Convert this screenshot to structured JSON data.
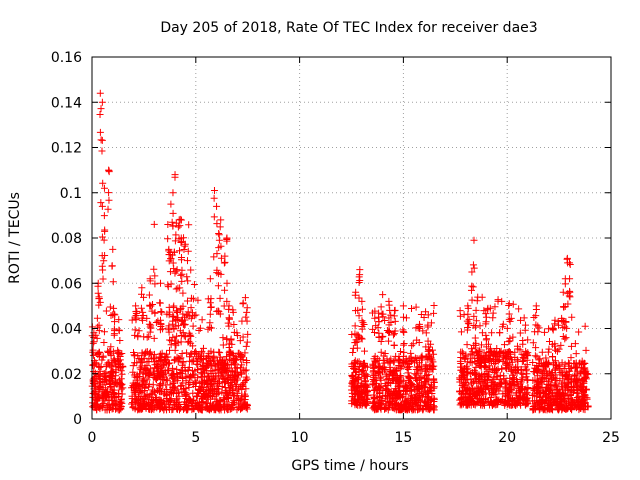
{
  "chart_data": {
    "type": "scatter",
    "title": "Day 205 of 2018, Rate Of TEC Index for receiver dae3",
    "xlabel": "GPS time / hours",
    "ylabel": "ROTI / TECUs",
    "xlim": [
      0,
      25
    ],
    "ylim": [
      0,
      0.16
    ],
    "grid": true,
    "x_ticks": [
      "0",
      "5",
      "10",
      "15",
      "20",
      "25"
    ],
    "y_ticks": [
      "0",
      "0.02",
      "0.04",
      "0.06",
      "0.08",
      "0.1",
      "0.12",
      "0.14",
      "0.16"
    ],
    "marker": "+",
    "color": "#ff0000",
    "clusters": [
      {
        "x_range": [
          0.0,
          1.5
        ],
        "y_range": [
          0.004,
          0.03
        ],
        "peaks": [
          [
            0.4,
            0.144
          ],
          [
            0.5,
            0.14
          ],
          [
            0.8,
            0.11
          ],
          [
            0.6,
            0.102
          ],
          [
            0.5,
            0.094
          ],
          [
            1.0,
            0.075
          ],
          [
            1.1,
            0.046
          ],
          [
            0.3,
            0.06
          ]
        ]
      },
      {
        "x_range": [
          1.9,
          3.6
        ],
        "y_range": [
          0.004,
          0.03
        ],
        "peaks": [
          [
            3.0,
            0.086
          ],
          [
            2.4,
            0.058
          ],
          [
            2.8,
            0.062
          ],
          [
            3.3,
            0.06
          ],
          [
            2.1,
            0.05
          ]
        ]
      },
      {
        "x_range": [
          3.6,
          5.0
        ],
        "y_range": [
          0.004,
          0.05
        ],
        "peaks": [
          [
            4.0,
            0.108
          ],
          [
            3.9,
            0.1
          ],
          [
            3.8,
            0.095
          ],
          [
            4.2,
            0.088
          ],
          [
            4.3,
            0.08
          ],
          [
            3.7,
            0.075
          ],
          [
            4.6,
            0.07
          ],
          [
            4.1,
            0.066
          ]
        ]
      },
      {
        "x_range": [
          5.0,
          7.5
        ],
        "y_range": [
          0.004,
          0.03
        ],
        "peaks": [
          [
            5.9,
            0.101
          ],
          [
            6.0,
            0.094
          ],
          [
            6.2,
            0.088
          ],
          [
            6.1,
            0.082
          ],
          [
            6.5,
            0.08
          ],
          [
            6.4,
            0.072
          ],
          [
            5.7,
            0.062
          ],
          [
            6.6,
            0.05
          ]
        ]
      },
      {
        "x_range": [
          12.5,
          13.3
        ],
        "y_range": [
          0.006,
          0.025
        ],
        "peaks": [
          [
            12.9,
            0.066
          ],
          [
            12.7,
            0.056
          ],
          [
            13.0,
            0.052
          ],
          [
            12.8,
            0.048
          ]
        ]
      },
      {
        "x_range": [
          13.5,
          16.5
        ],
        "y_range": [
          0.004,
          0.028
        ],
        "peaks": [
          [
            14.0,
            0.055
          ],
          [
            14.3,
            0.052
          ],
          [
            14.6,
            0.048
          ],
          [
            15.0,
            0.05
          ],
          [
            16.2,
            0.046
          ],
          [
            13.8,
            0.045
          ]
        ]
      },
      {
        "x_range": [
          17.7,
          21.0
        ],
        "y_range": [
          0.006,
          0.03
        ],
        "peaks": [
          [
            18.4,
            0.079
          ],
          [
            18.3,
            0.065
          ],
          [
            18.1,
            0.05
          ],
          [
            18.5,
            0.048
          ],
          [
            20.1,
            0.051
          ],
          [
            19.0,
            0.045
          ]
        ]
      },
      {
        "x_range": [
          21.2,
          23.9
        ],
        "y_range": [
          0.004,
          0.025
        ],
        "peaks": [
          [
            22.9,
            0.071
          ],
          [
            23.0,
            0.069
          ],
          [
            22.8,
            0.062
          ],
          [
            22.7,
            0.056
          ],
          [
            21.4,
            0.05
          ],
          [
            22.2,
            0.04
          ]
        ]
      }
    ]
  }
}
